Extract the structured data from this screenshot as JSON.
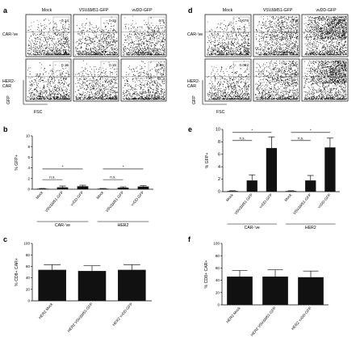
{
  "figure": {
    "panels": {
      "a": {
        "letter": "a",
        "col_labels": [
          "Mock",
          "VSVΔM51-GFP",
          "vvDD-GFP"
        ],
        "row_labels": [
          "CAR-'ve",
          "HER2-\nCAR"
        ],
        "percents": [
          [
            "0.14",
            "0.15",
            "0.4"
          ],
          [
            "0.15",
            "0.15",
            "0.55"
          ]
        ],
        "xlabel": "FSC",
        "ylabel": "GFP"
      },
      "d": {
        "letter": "d",
        "col_labels": [
          "Mock",
          "VSVΔM51-GFP",
          "vvDD-GFP"
        ],
        "row_labels": [
          "CAR-'ve",
          "HER2-\nCAR"
        ],
        "percents": [
          [
            "0.076",
            "0.8",
            "0.74"
          ],
          [
            "0.062",
            "0.66",
            "6.62"
          ]
        ],
        "xlabel": "FSC",
        "ylabel": "GFP"
      },
      "b": {
        "letter": "b"
      },
      "e": {
        "letter": "e"
      },
      "c": {
        "letter": "c"
      },
      "f": {
        "letter": "f"
      }
    }
  },
  "chart_data": [
    {
      "id": "b",
      "type": "bar",
      "ylabel": "% GFP+",
      "ylim": [
        0,
        10
      ],
      "yticks": [
        0,
        2,
        4,
        6,
        8,
        10
      ],
      "categories": [
        "Mock",
        "VSVΔM51-GFP",
        "vvDD-GFP",
        "Mock",
        "VSVΔM51-GFP",
        "vvDD-GFP"
      ],
      "values": [
        0.1,
        0.35,
        0.55,
        0.1,
        0.3,
        0.5
      ],
      "errors": [
        0.05,
        0.25,
        0.2,
        0.05,
        0.15,
        0.15
      ],
      "groups": [
        {
          "label": "CAR-'ve",
          "from": 0,
          "to": 2
        },
        {
          "label": "HER2",
          "from": 3,
          "to": 5
        }
      ],
      "annotations": [
        {
          "text": "n.s.",
          "from": 0,
          "to": 1,
          "level": 1.8
        },
        {
          "text": "*",
          "from": 0,
          "to": 2,
          "level": 3.8
        },
        {
          "text": "n.s.",
          "from": 3,
          "to": 4,
          "level": 1.8
        },
        {
          "text": "*",
          "from": 3,
          "to": 5,
          "level": 3.8
        }
      ]
    },
    {
      "id": "e",
      "type": "bar",
      "ylabel": "% GFP+",
      "ylim": [
        0,
        10
      ],
      "yticks": [
        0,
        2,
        4,
        6,
        8,
        10
      ],
      "categories": [
        "Mock",
        "VSVΔM51-GFP",
        "vvDD-GFP",
        "Mock",
        "VSVΔM51-GFP",
        "vvDD-GFP"
      ],
      "values": [
        0.1,
        1.8,
        7.0,
        0.1,
        1.8,
        7.1
      ],
      "errors": [
        0.05,
        0.9,
        1.8,
        0.05,
        0.8,
        1.5
      ],
      "groups": [
        {
          "label": "CAR-'ve",
          "from": 0,
          "to": 2
        },
        {
          "label": "HER2",
          "from": 3,
          "to": 5
        }
      ],
      "annotations": [
        {
          "text": "n.s.",
          "from": 0,
          "to": 1,
          "level": 8.2
        },
        {
          "text": "*",
          "from": 0,
          "to": 2,
          "level": 9.5
        },
        {
          "text": "n.s.",
          "from": 3,
          "to": 4,
          "level": 8.2
        },
        {
          "text": "*",
          "from": 3,
          "to": 5,
          "level": 9.5
        }
      ]
    },
    {
      "id": "c",
      "type": "bar",
      "ylabel": "% CD8+ CAR+",
      "ylim": [
        0,
        100
      ],
      "yticks": [
        0,
        20,
        40,
        60,
        80,
        100
      ],
      "categories": [
        "HER2 Mock",
        "HER2 VSVΔM51-GFP",
        "HER2 vvDD-GFP"
      ],
      "values": [
        54,
        52,
        54
      ],
      "errors": [
        9,
        9,
        9
      ]
    },
    {
      "id": "f",
      "type": "bar",
      "ylabel": "% CD8+ CAR+",
      "ylim": [
        0,
        100
      ],
      "yticks": [
        0,
        20,
        40,
        60,
        80,
        100
      ],
      "categories": [
        "HER2 Mock",
        "HER2 VSVΔM51-GFP",
        "HER2 vvDD-GFP"
      ],
      "values": [
        46,
        46,
        45
      ],
      "errors": [
        10,
        11,
        10
      ]
    }
  ]
}
